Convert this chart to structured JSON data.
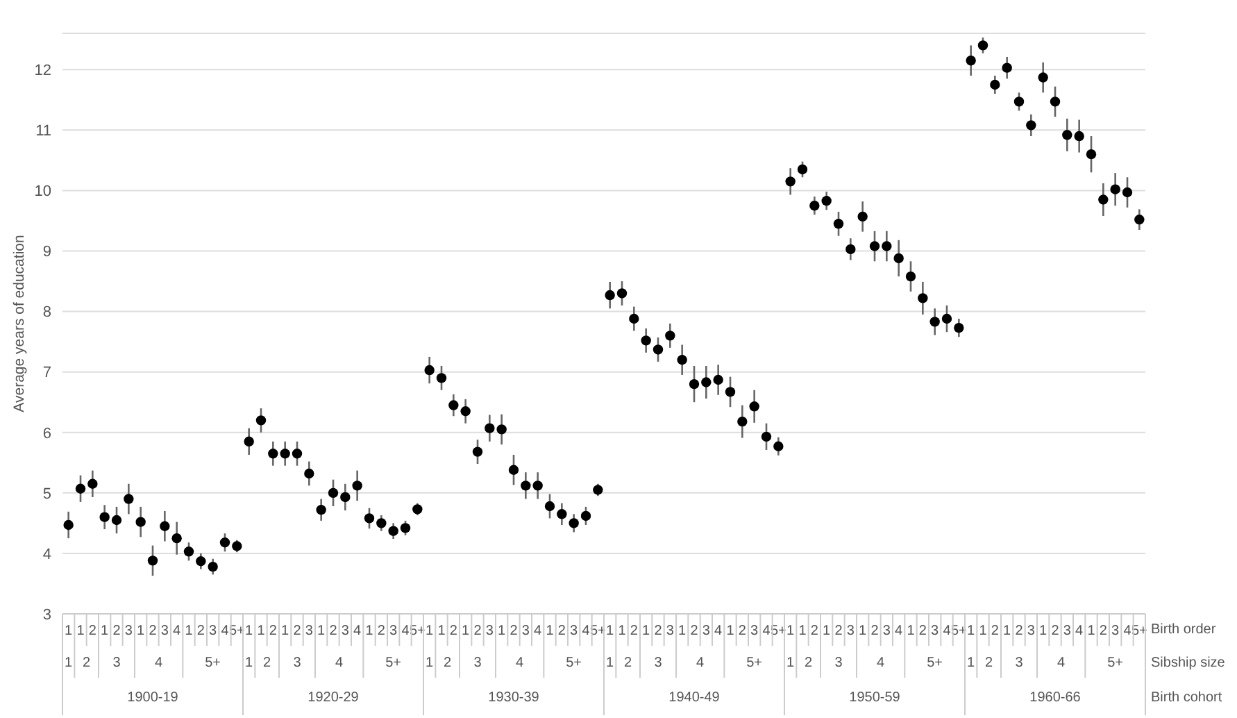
{
  "chart_data": {
    "type": "scatter",
    "ylabel": "Average years of education",
    "categories": [
      "1",
      "1",
      "2",
      "1",
      "2",
      "3",
      "1",
      "2",
      "3",
      "4",
      "1",
      "2",
      "3",
      "4",
      "5+",
      "1",
      "1",
      "2",
      "1",
      "2",
      "3",
      "1",
      "2",
      "3",
      "4",
      "1",
      "2",
      "3",
      "4",
      "5+",
      "1",
      "1",
      "2",
      "1",
      "2",
      "3",
      "1",
      "2",
      "3",
      "4",
      "1",
      "2",
      "3",
      "4",
      "5+",
      "1",
      "1",
      "2",
      "1",
      "2",
      "3",
      "1",
      "2",
      "3",
      "4",
      "1",
      "2",
      "3",
      "4",
      "5+",
      "1",
      "1",
      "2",
      "1",
      "2",
      "3",
      "1",
      "2",
      "3",
      "4",
      "1",
      "2",
      "3",
      "4",
      "5+",
      "1",
      "1",
      "2",
      "1",
      "2",
      "3",
      "1",
      "2",
      "3",
      "4",
      "1",
      "2",
      "3",
      "4",
      "5+"
    ],
    "values": [
      4.47,
      5.07,
      5.15,
      4.6,
      4.55,
      4.9,
      4.52,
      3.88,
      4.45,
      4.25,
      4.03,
      3.87,
      3.78,
      4.18,
      4.12,
      5.85,
      6.2,
      5.65,
      5.65,
      5.65,
      5.32,
      4.72,
      5.0,
      4.93,
      5.12,
      4.58,
      4.5,
      4.37,
      4.42,
      4.73,
      7.03,
      6.9,
      6.45,
      6.35,
      5.68,
      6.07,
      6.05,
      5.38,
      5.12,
      5.12,
      4.78,
      4.65,
      4.5,
      4.62,
      5.05,
      8.27,
      8.3,
      7.88,
      7.52,
      7.37,
      7.6,
      7.2,
      6.8,
      6.83,
      6.87,
      6.67,
      6.18,
      6.43,
      5.93,
      5.77,
      10.15,
      10.35,
      9.75,
      9.83,
      9.45,
      9.03,
      9.57,
      9.08,
      9.08,
      8.88,
      8.58,
      8.22,
      7.83,
      7.88,
      7.73,
      12.15,
      12.4,
      11.75,
      12.03,
      11.47,
      11.08,
      11.87,
      11.47,
      10.92,
      10.9,
      10.6,
      9.85,
      10.02,
      9.97,
      9.52
    ],
    "errors": [
      0.22,
      0.22,
      0.22,
      0.2,
      0.22,
      0.25,
      0.25,
      0.25,
      0.25,
      0.27,
      0.15,
      0.13,
      0.13,
      0.15,
      0.1,
      0.22,
      0.2,
      0.2,
      0.2,
      0.2,
      0.2,
      0.18,
      0.22,
      0.22,
      0.25,
      0.17,
      0.13,
      0.13,
      0.12,
      0.1,
      0.22,
      0.2,
      0.18,
      0.2,
      0.2,
      0.22,
      0.25,
      0.25,
      0.22,
      0.22,
      0.2,
      0.18,
      0.15,
      0.15,
      0.1,
      0.22,
      0.2,
      0.2,
      0.2,
      0.2,
      0.2,
      0.25,
      0.3,
      0.27,
      0.25,
      0.25,
      0.27,
      0.27,
      0.22,
      0.15,
      0.22,
      0.13,
      0.15,
      0.15,
      0.2,
      0.18,
      0.25,
      0.25,
      0.25,
      0.3,
      0.25,
      0.27,
      0.22,
      0.22,
      0.15,
      0.25,
      0.13,
      0.15,
      0.18,
      0.15,
      0.18,
      0.25,
      0.25,
      0.27,
      0.27,
      0.3,
      0.27,
      0.27,
      0.25,
      0.17
    ],
    "color": "#000000",
    "marker": "circle",
    "grid": "y",
    "ylim": [
      3,
      12.6
    ],
    "yticks": [
      3,
      4,
      5,
      6,
      7,
      8,
      9,
      10,
      11,
      12
    ],
    "annotations": [
      "Birth order",
      "Sibship size",
      "Birth cohort",
      "1",
      "2",
      "3",
      "4",
      "5+",
      "1",
      "2",
      "3",
      "4",
      "5+",
      "1",
      "2",
      "3",
      "4",
      "5+",
      "1",
      "2",
      "3",
      "4",
      "5+",
      "1",
      "2",
      "3",
      "4",
      "5+",
      "1",
      "2",
      "3",
      "4",
      "5+",
      "1900-19",
      "1920-29",
      "1930-39",
      "1940-49",
      "1950-59",
      "1960-66"
    ]
  }
}
